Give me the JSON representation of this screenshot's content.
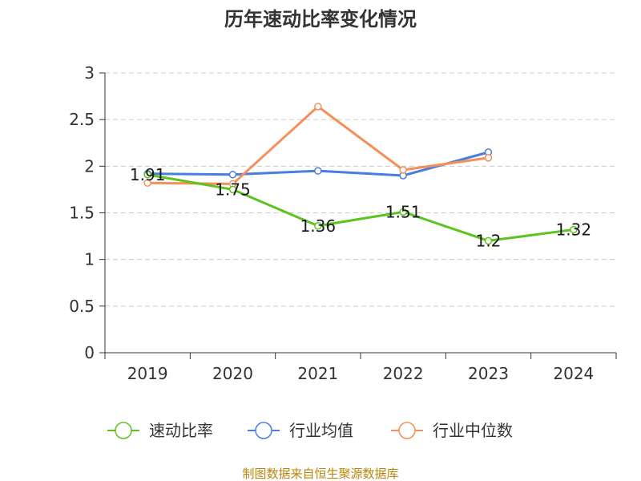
{
  "chart_data": {
    "type": "line",
    "title": "历年速动比率变化情况",
    "categories": [
      "2019",
      "2020",
      "2021",
      "2022",
      "2023",
      "2024"
    ],
    "yticks": [
      "0",
      "0.5",
      "1",
      "1.5",
      "2",
      "2.5",
      "3"
    ],
    "ylim": [
      0,
      3
    ],
    "grid": true,
    "legend_position": "bottom",
    "series": [
      {
        "name": "速动比率",
        "color": "#5cc31f",
        "values": [
          1.91,
          1.75,
          1.36,
          1.51,
          1.2,
          1.32
        ],
        "labels": [
          "1.91",
          "1.75",
          "1.36",
          "1.51",
          "1.2",
          "1.32"
        ]
      },
      {
        "name": "行业均值",
        "color": "#4a7de0",
        "values": [
          1.92,
          1.91,
          1.95,
          1.9,
          2.15,
          null
        ]
      },
      {
        "name": "行业中位数",
        "color": "#f5905a",
        "values": [
          1.82,
          1.81,
          2.64,
          1.96,
          2.09,
          null
        ]
      }
    ],
    "source": "制图数据来自恒生聚源数据库"
  }
}
